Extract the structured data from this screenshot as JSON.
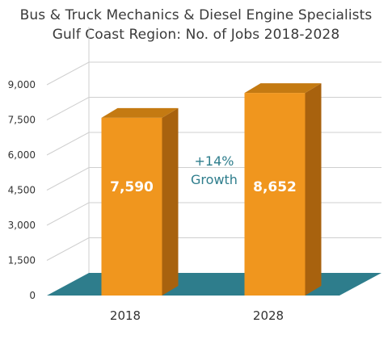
{
  "chart_data": {
    "type": "bar",
    "title": "Bus & Truck Mechanics & Diesel Engine Specialists",
    "subtitle": "Gulf Coast Region: No. of Jobs 2018-2028",
    "categories": [
      "2018",
      "2028"
    ],
    "values": [
      7590,
      8652
    ],
    "value_labels": [
      "7,590",
      "8,652"
    ],
    "y_ticks": [
      0,
      1500,
      3000,
      4500,
      6000,
      7500,
      9000
    ],
    "y_tick_labels": [
      "0",
      "1,500",
      "3,000",
      "4,500",
      "6,000",
      "7,500",
      "9,000"
    ],
    "ylim": [
      0,
      10500
    ],
    "grid": true,
    "annotation": {
      "line1": "+14%",
      "line2": "Growth"
    },
    "colors": {
      "bar_front": "#F0961E",
      "bar_side": "#A8620E",
      "bar_top": "#C47A12",
      "floor": "#2E7D8C",
      "annotation_text": "#2E7D8C",
      "grid": "#cfcfcf"
    }
  }
}
